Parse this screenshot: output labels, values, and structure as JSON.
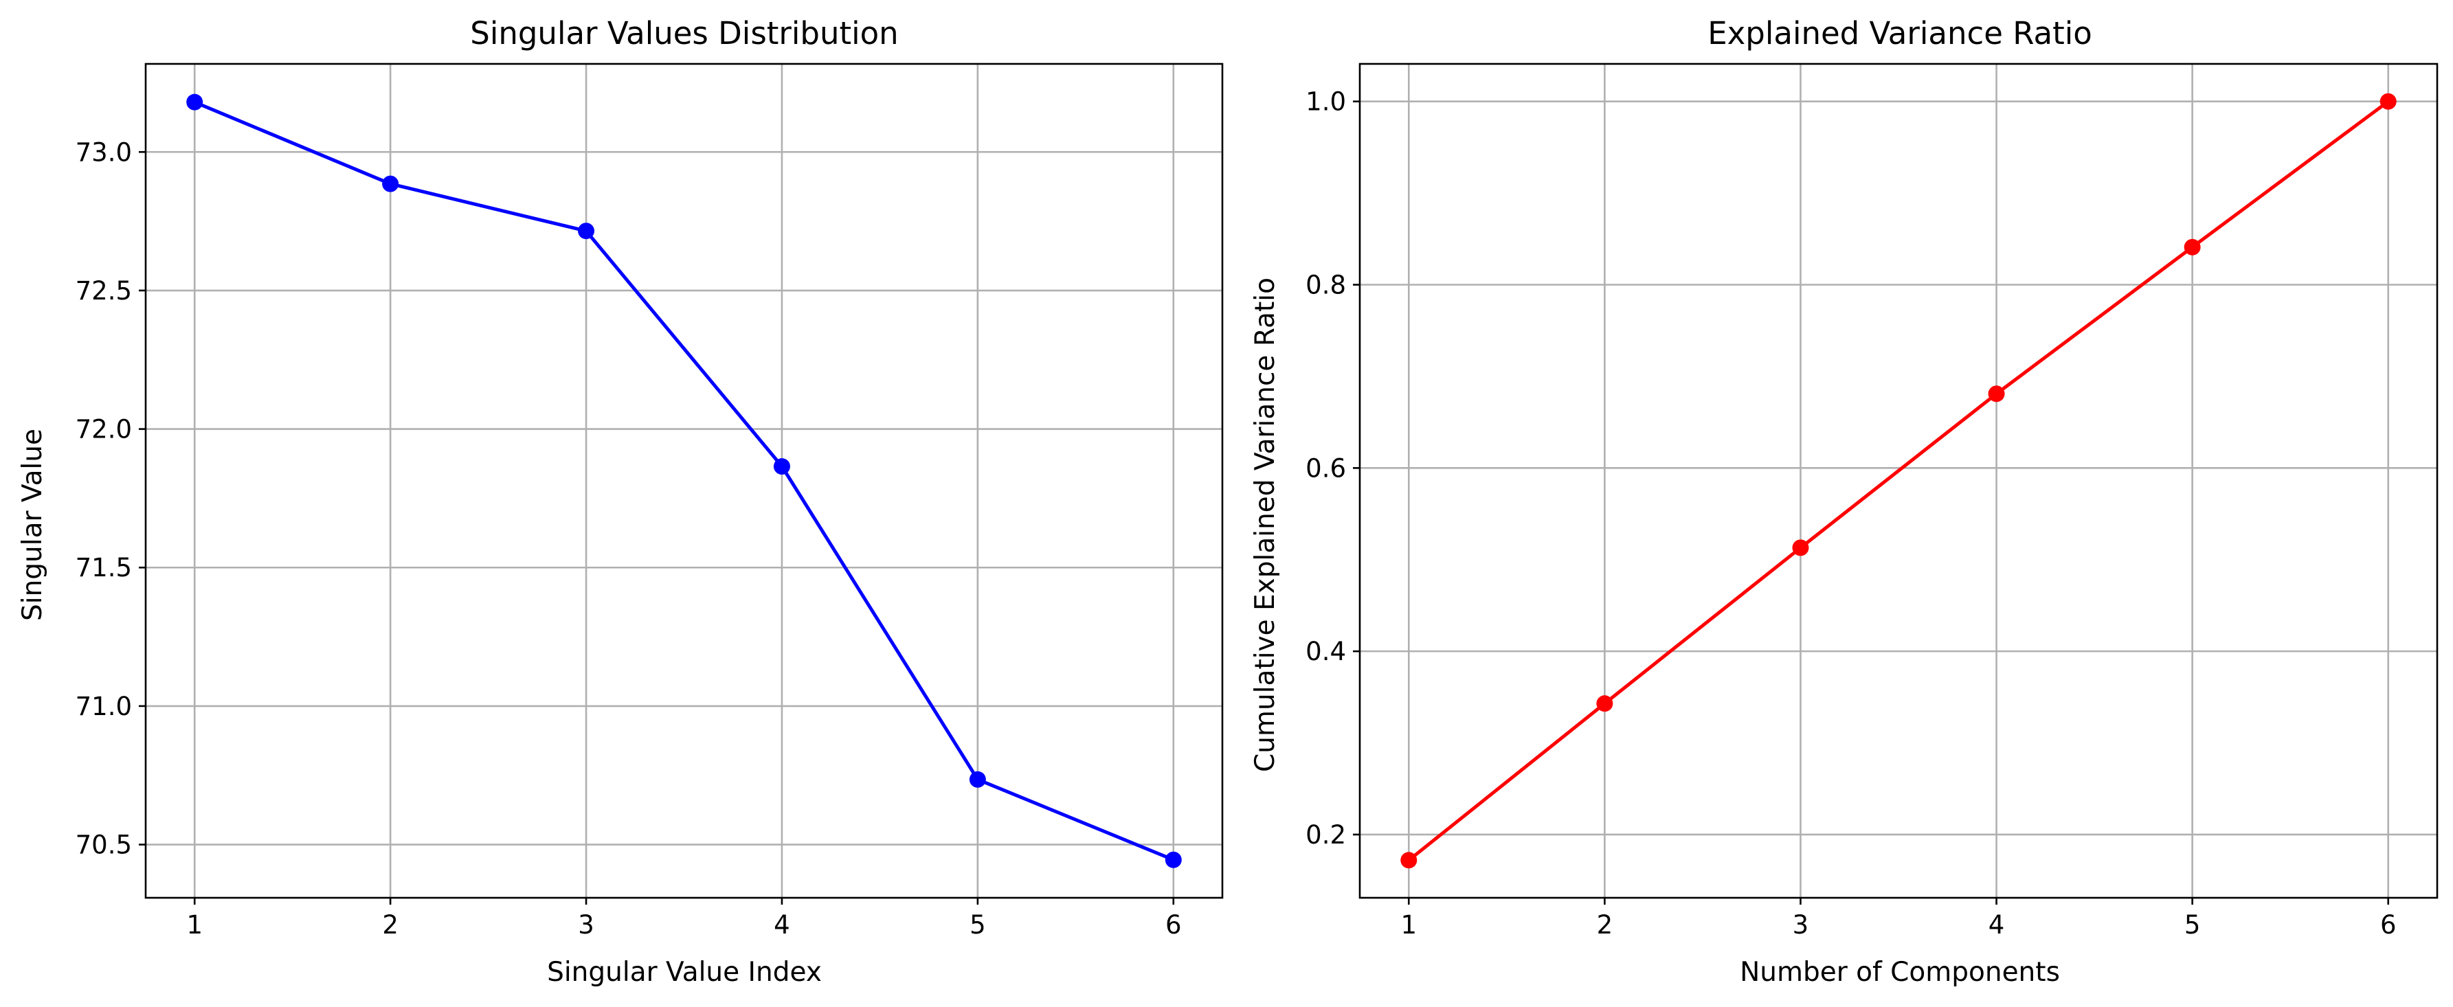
{
  "chart_data": [
    {
      "type": "line",
      "title": "Singular Values Distribution",
      "xlabel": "Singular Value Index",
      "ylabel": "Singular Value",
      "x": [
        1,
        2,
        3,
        4,
        5,
        6
      ],
      "series": [
        {
          "values": [
            73.18,
            72.885,
            72.715,
            71.865,
            70.735,
            70.445
          ],
          "color": "#0000ff",
          "marker": "circle"
        }
      ],
      "xlim": [
        0.75,
        6.25
      ],
      "ylim": [
        70.308,
        73.318
      ],
      "xticks": [
        1,
        2,
        3,
        4,
        5,
        6
      ],
      "xtick_labels": [
        "1",
        "2",
        "3",
        "4",
        "5",
        "6"
      ],
      "yticks": [
        70.5,
        71.0,
        71.5,
        72.0,
        72.5,
        73.0
      ],
      "ytick_labels": [
        "70.5",
        "71.0",
        "71.5",
        "72.0",
        "72.5",
        "73.0"
      ],
      "grid": true
    },
    {
      "type": "line",
      "title": "Explained Variance Ratio",
      "xlabel": "Number of Components",
      "ylabel": "Cumulative Explained Variance Ratio",
      "x": [
        1,
        2,
        3,
        4,
        5,
        6
      ],
      "series": [
        {
          "values": [
            0.172,
            0.343,
            0.513,
            0.681,
            0.841,
            1.0
          ],
          "color": "#ff0000",
          "marker": "circle"
        }
      ],
      "xlim": [
        0.75,
        6.25
      ],
      "ylim": [
        0.131,
        1.041
      ],
      "xticks": [
        1,
        2,
        3,
        4,
        5,
        6
      ],
      "xtick_labels": [
        "1",
        "2",
        "3",
        "4",
        "5",
        "6"
      ],
      "yticks": [
        0.2,
        0.4,
        0.6,
        0.8,
        1.0
      ],
      "ytick_labels": [
        "0.2",
        "0.4",
        "0.6",
        "0.8",
        "1.0"
      ],
      "grid": true
    }
  ]
}
